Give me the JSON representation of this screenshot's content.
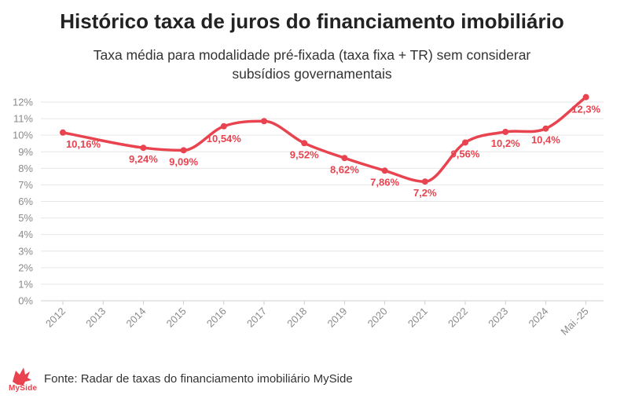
{
  "title": "Histórico taxa de juros do financiamento imobiliário",
  "subtitle": "Taxa média para modalidade pré-fixada (taxa fixa + TR) sem considerar subsídios governamentais",
  "source": "Fonte: Radar de taxas do financiamento imobiliário MySide",
  "logo_text": "MySide",
  "colors": {
    "line": "#e8434f",
    "grid": "#e6e6e6",
    "axis_text": "#8a8a8a"
  },
  "chart_data": {
    "type": "line",
    "title": "Histórico taxa de juros do financiamento imobiliário",
    "xlabel": "",
    "ylabel": "",
    "ylim": [
      0,
      12
    ],
    "yticks": [
      "0%",
      "1%",
      "2%",
      "3%",
      "4%",
      "5%",
      "6%",
      "7%",
      "8%",
      "9%",
      "10%",
      "11%",
      "12%"
    ],
    "categories": [
      "2012",
      "2013",
      "2014",
      "2015",
      "2016",
      "2017",
      "2018",
      "2019",
      "2020",
      "2021",
      "2022",
      "2023",
      "2024",
      "Mai.-25"
    ],
    "series": [
      {
        "name": "Taxa média",
        "points": [
          {
            "x": "2012",
            "value": 10.16,
            "label": "10,16%"
          },
          {
            "x": "2014",
            "value": 9.24,
            "label": "9,24%"
          },
          {
            "x": "2015",
            "value": 9.09,
            "label": "9,09%"
          },
          {
            "x": "2016",
            "value": 10.54,
            "label": "10,54%"
          },
          {
            "x": "2017",
            "value": 10.85,
            "label": ""
          },
          {
            "x": "2018",
            "value": 9.52,
            "label": "9,52%"
          },
          {
            "x": "2019",
            "value": 8.62,
            "label": "8,62%"
          },
          {
            "x": "2020",
            "value": 7.86,
            "label": "7,86%"
          },
          {
            "x": "2021",
            "value": 7.2,
            "label": "7,2%"
          },
          {
            "x": "2022",
            "value": 9.56,
            "label": "9,56%"
          },
          {
            "x": "2023",
            "value": 10.2,
            "label": "10,2%"
          },
          {
            "x": "2024",
            "value": 10.4,
            "label": "10,4%"
          },
          {
            "x": "Mai.-25",
            "value": 12.3,
            "label": "12,3%"
          }
        ]
      }
    ],
    "grid": true
  }
}
